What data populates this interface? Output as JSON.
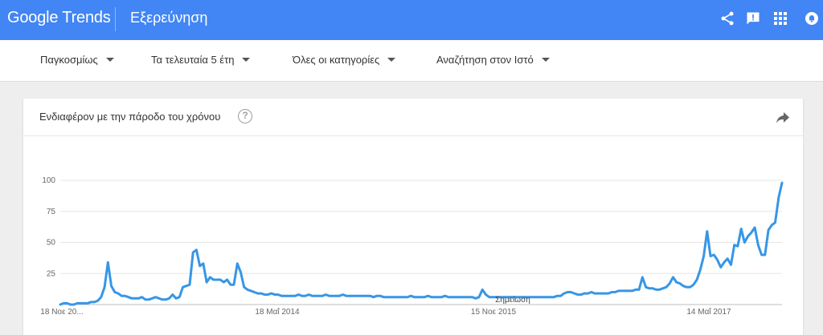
{
  "header": {
    "logo_google": "Google",
    "logo_trends": "Trends",
    "title": "Εξερεύνηση",
    "icons": [
      "share-icon",
      "feedback-icon",
      "apps-icon",
      "notifications-icon"
    ]
  },
  "filters": [
    {
      "label": "Παγκοσμίως"
    },
    {
      "label": "Τα τελευταία 5 έτη"
    },
    {
      "label": "Όλες οι κατηγορίες"
    },
    {
      "label": "Αναζήτηση στον Ιστό"
    }
  ],
  "card": {
    "title": "Ενδιαφέρον με την πάροδο του χρόνου",
    "help": "?"
  },
  "chart_data": {
    "type": "line",
    "title": "",
    "xlabel": "",
    "ylabel": "",
    "ylim": [
      0,
      100
    ],
    "yticks": [
      25,
      50,
      75,
      100
    ],
    "grid": true,
    "x_start": "18 Νοε 2012",
    "x_end": "2017-11",
    "xtick_labels": [
      "18 Νοε 20...",
      "18 Μαΐ 2014",
      "15 Νοε 2015",
      "14 Μαΐ 2017"
    ],
    "annotation": "Σημείωση",
    "line_color": "#3796e6",
    "series": [
      {
        "values": [
          0,
          1,
          1,
          0,
          0,
          1,
          1,
          1,
          1,
          2,
          2,
          3,
          6,
          14,
          34,
          15,
          10,
          9,
          7,
          7,
          6,
          5,
          5,
          5,
          6,
          4,
          4,
          5,
          6,
          5,
          4,
          4,
          5,
          8,
          5,
          6,
          14,
          15,
          16,
          42,
          44,
          31,
          33,
          18,
          22,
          20,
          20,
          20,
          18,
          20,
          16,
          16,
          33,
          26,
          14,
          12,
          11,
          10,
          9,
          9,
          8,
          8,
          9,
          8,
          8,
          7,
          7,
          7,
          7,
          7,
          8,
          7,
          7,
          8,
          7,
          7,
          7,
          7,
          8,
          7,
          7,
          7,
          7,
          8,
          7,
          7,
          7,
          7,
          7,
          7,
          7,
          7,
          6,
          7,
          7,
          6,
          6,
          6,
          6,
          6,
          6,
          6,
          6,
          7,
          6,
          6,
          6,
          6,
          7,
          6,
          6,
          6,
          6,
          7,
          6,
          6,
          6,
          6,
          6,
          6,
          6,
          6,
          5,
          6,
          12,
          8,
          6,
          6,
          6,
          6,
          6,
          6,
          6,
          6,
          6,
          6,
          6,
          6,
          6,
          6,
          6,
          6,
          6,
          6,
          6,
          6,
          7,
          7,
          9,
          10,
          10,
          9,
          8,
          8,
          9,
          9,
          10,
          9,
          9,
          9,
          9,
          9,
          10,
          10,
          11,
          11,
          11,
          11,
          11,
          12,
          12,
          22,
          14,
          13,
          13,
          12,
          12,
          13,
          14,
          17,
          22,
          18,
          17,
          15,
          14,
          14,
          16,
          20,
          28,
          39,
          59,
          39,
          40,
          36,
          30,
          34,
          37,
          32,
          48,
          47,
          61,
          50,
          55,
          58,
          62,
          48,
          40,
          40,
          60,
          64,
          66,
          86,
          98
        ]
      }
    ]
  }
}
